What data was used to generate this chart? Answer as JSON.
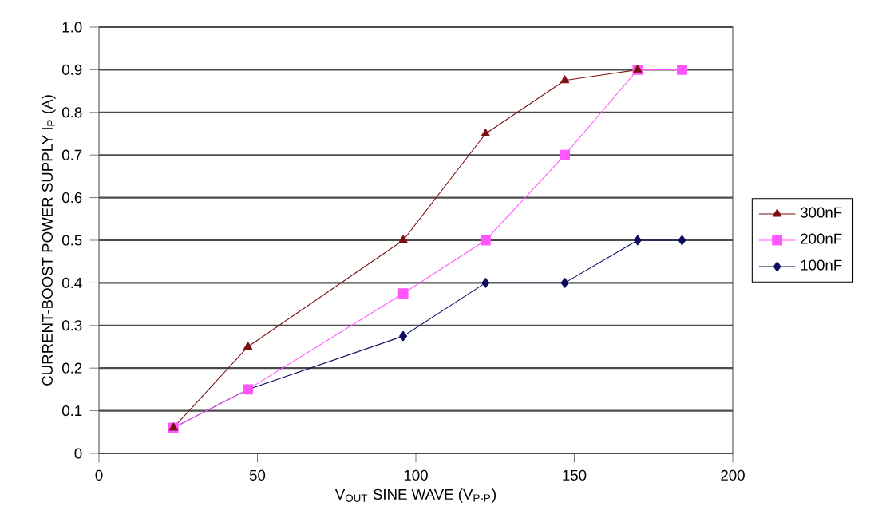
{
  "chart_data": {
    "type": "line",
    "xlabel": "V$_{OUT}$ SINE WAVE (V$_{P-P}$)",
    "ylabel": "CURRENT-BOOST POWER SUPPLY I$_{P}$ (A)",
    "xlim": [
      0,
      200
    ],
    "xticks": [
      0,
      50,
      100,
      150,
      200
    ],
    "ylim": [
      0,
      1
    ],
    "yticks": [
      0,
      0.1,
      0.2,
      0.3,
      0.4,
      0.5,
      0.6,
      0.7,
      0.8,
      0.9,
      {
        "value": 1,
        "label": "1.0"
      }
    ],
    "grid": "y",
    "legend": "right",
    "series": [
      {
        "name": "300nF",
        "color": "#7b1010",
        "marker": "triangle",
        "x": [
          23.5,
          47,
          96,
          122,
          147,
          170
        ],
        "values": [
          0.06,
          0.25,
          0.5,
          0.75,
          0.875,
          0.9
        ]
      },
      {
        "name": "200nF",
        "color": "#ff55ff",
        "marker": "square",
        "x": [
          23.5,
          47,
          96,
          122,
          147,
          170,
          184
        ],
        "values": [
          0.06,
          0.15,
          0.375,
          0.5,
          0.7,
          0.9,
          0.9
        ]
      },
      {
        "name": "100nF",
        "color": "#0a0a60",
        "marker": "diamond",
        "x": [
          23.5,
          47,
          96,
          122,
          147,
          170,
          184
        ],
        "values": [
          0.06,
          0.15,
          0.275,
          0.4,
          0.4,
          0.5,
          0.5
        ]
      }
    ]
  }
}
